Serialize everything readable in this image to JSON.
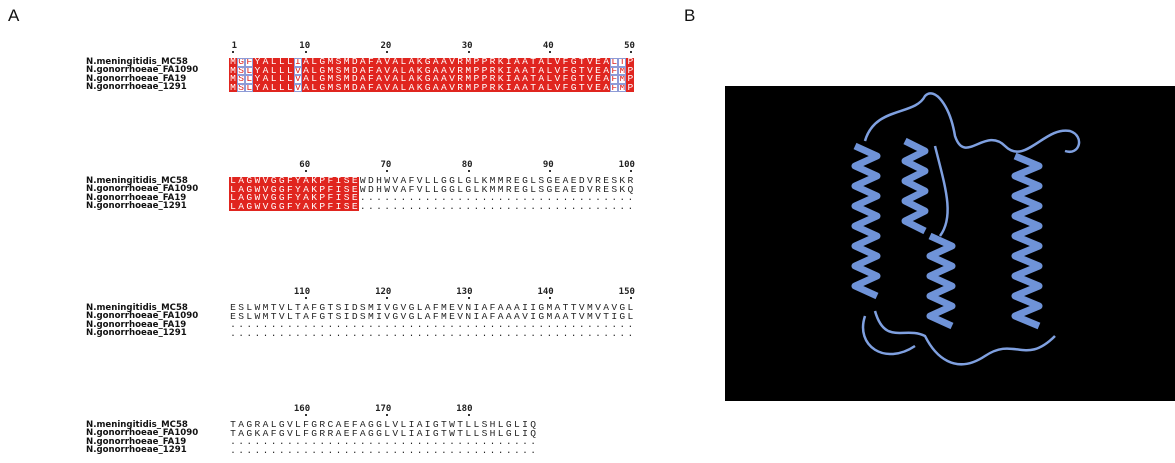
{
  "panel_a": {
    "label": "A",
    "blocks": [
      {
        "ruler": [
          1,
          10,
          20,
          30,
          40,
          50
        ],
        "rows": [
          {
            "name": "N.meningitidis_MC58",
            "seq": "MGFYALLLIALGMSMDAFAVALAKGAAVRMPPRKIAATALVFGTVEALTP"
          },
          {
            "name": "N.gonorrhoeae_FA1090",
            "seq": "MSLYALLLVALGMSMDAFAVALAKGAAVRMPPRKIAATALVFGTVEAFMP"
          },
          {
            "name": "N.gonorrhoeae_FA19",
            "seq": "MSLYALLLVALGMSMDAFAVALAKGAAVRMPPRKIAATALVFGTVEAFMP"
          },
          {
            "name": "N.gonorrhoeae_1291",
            "seq": "MSLYALLLVALGMSMDAFAVALAKGAAVRMPPRKIAATALVFGTVEAFMP"
          }
        ]
      },
      {
        "ruler": [
          60,
          70,
          80,
          90,
          100
        ],
        "rows": [
          {
            "name": "N.meningitidis_MC58",
            "seq": "LAGWVGGFYAKPFISEWDHWVAFVLLGGLGLKMMREGLSGEAEDVRESKR"
          },
          {
            "name": "N.gonorrhoeae_FA1090",
            "seq": "LAGWVGGFYAKPFISEWDHWVAFVLLGGLGLKMMREGLSGEAEDVRESKQ"
          },
          {
            "name": "N.gonorrhoeae_FA19",
            "seq": "LAGWVGGFYAKPFISE.................................."
          },
          {
            "name": "N.gonorrhoeae_1291",
            "seq": "LAGWVGGFYAKPFISE.................................."
          }
        ]
      },
      {
        "ruler": [
          110,
          120,
          130,
          140,
          150
        ],
        "rows": [
          {
            "name": "N.meningitidis_MC58",
            "seq": "ESLWMTVLTAFGTSIDSMIVGVGLAFMEVNIAFAAAIIGMATTVMVAVGL"
          },
          {
            "name": "N.gonorrhoeae_FA1090",
            "seq": "ESLWMTVLTAFGTSIDSMIVGVGLAFMEVNIAFAAAVIGMAATVMVTIGL"
          },
          {
            "name": "N.gonorrhoeae_FA19",
            "seq": ".................................................."
          },
          {
            "name": "N.gonorrhoeae_1291",
            "seq": ".................................................."
          }
        ]
      },
      {
        "ruler": [
          160,
          170,
          180
        ],
        "rows": [
          {
            "name": "N.meningitidis_MC58",
            "seq": "TAGRALGVLFGRCAEFAGGLVLIAIGTWTLLSHLGLIQ"
          },
          {
            "name": "N.gonorrhoeae_FA1090",
            "seq": "TAGKAFGVLFGRRAEFAGGLVLIAIGTWTLLSHLGLIQ"
          },
          {
            "name": "N.gonorrhoeae_FA19",
            "seq": "......................................"
          },
          {
            "name": "N.gonorrhoeae_1291",
            "seq": "......................................"
          }
        ]
      }
    ]
  },
  "panel_b": {
    "label": "B"
  }
}
